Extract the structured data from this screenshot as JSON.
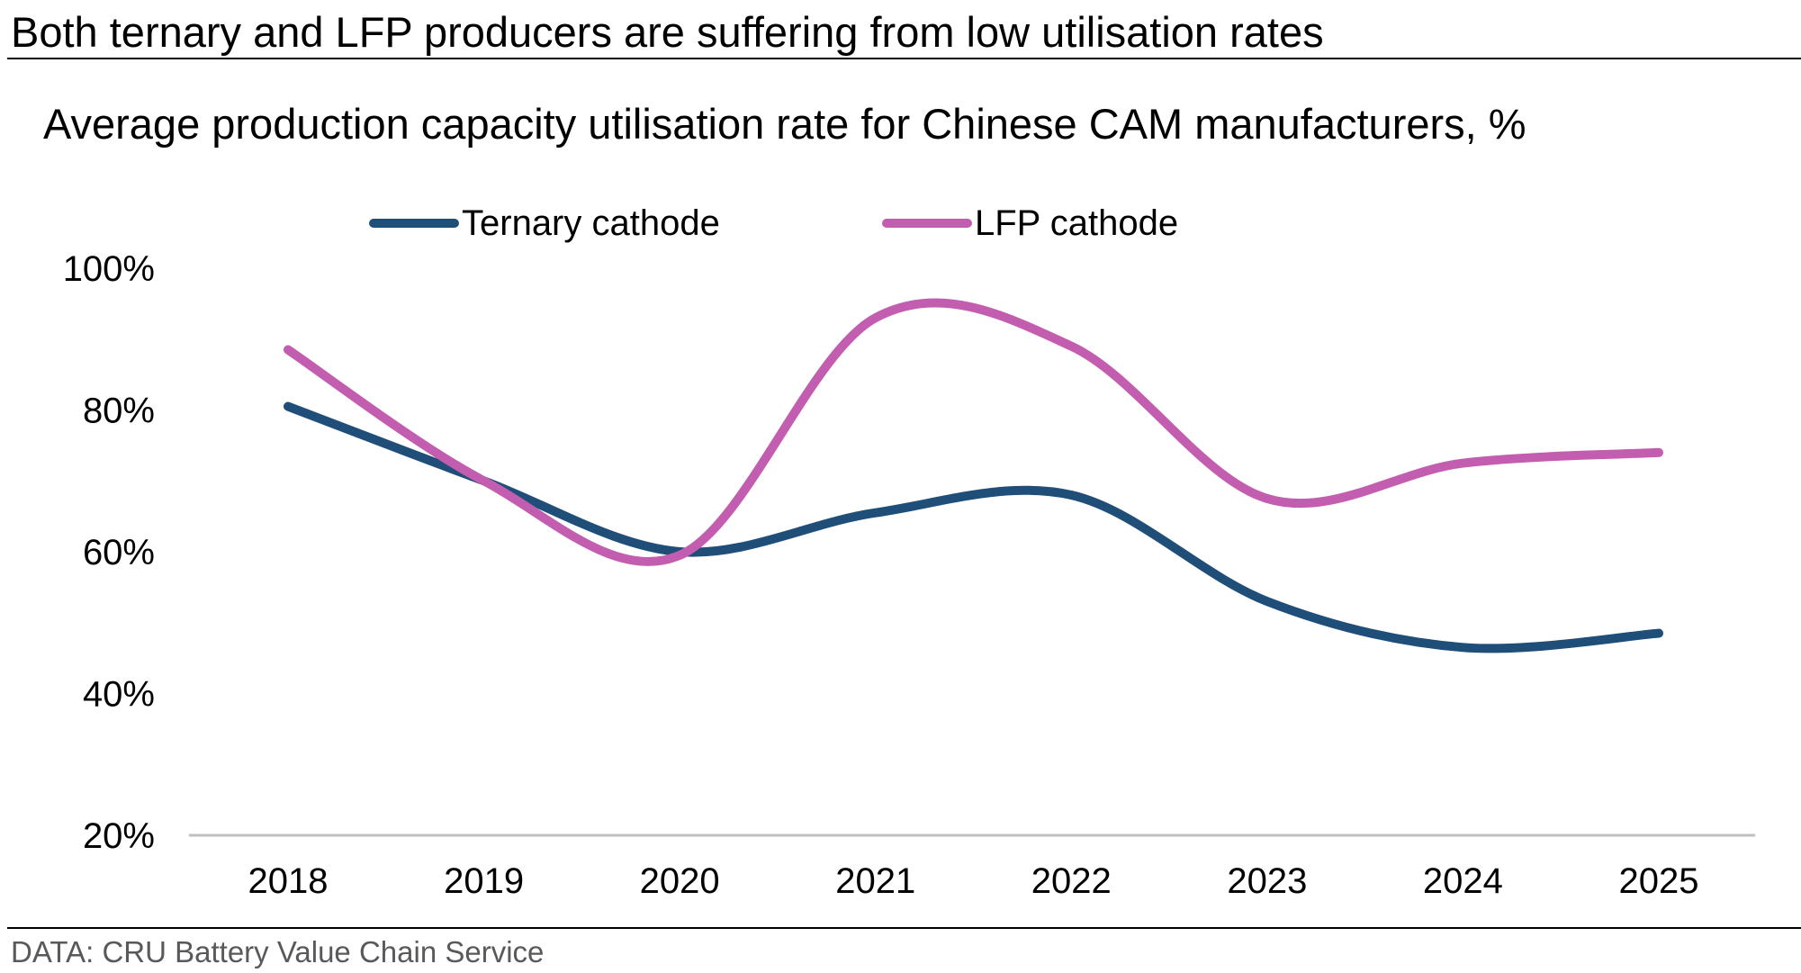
{
  "header": {
    "title": "Both ternary and LFP producers are suffering from low utilisation rates"
  },
  "footer": {
    "source": "DATA: CRU Battery Value Chain Service"
  },
  "chart_data": {
    "type": "line",
    "title": "Average production capacity utilisation rate for Chinese CAM manufacturers, %",
    "xlabel": "",
    "ylabel": "",
    "categories": [
      "2018",
      "2019",
      "2020",
      "2021",
      "2022",
      "2023",
      "2024",
      "2025"
    ],
    "series": [
      {
        "name": "Ternary cathode",
        "color": "#1f4e79",
        "values": [
          80.5,
          70,
          60,
          65.5,
          68,
          53,
          46.5,
          48.5
        ]
      },
      {
        "name": "LFP cathode",
        "color": "#c25db0",
        "values": [
          88.5,
          70,
          59.5,
          93,
          89,
          67.5,
          72.5,
          74
        ]
      }
    ],
    "ylim": [
      20,
      100
    ],
    "yticks": [
      "20%",
      "40%",
      "60%",
      "80%",
      "100%"
    ],
    "ytick_values": [
      20,
      40,
      60,
      80,
      100
    ],
    "grid": false,
    "legend_position": "top-center",
    "smooth": true
  }
}
